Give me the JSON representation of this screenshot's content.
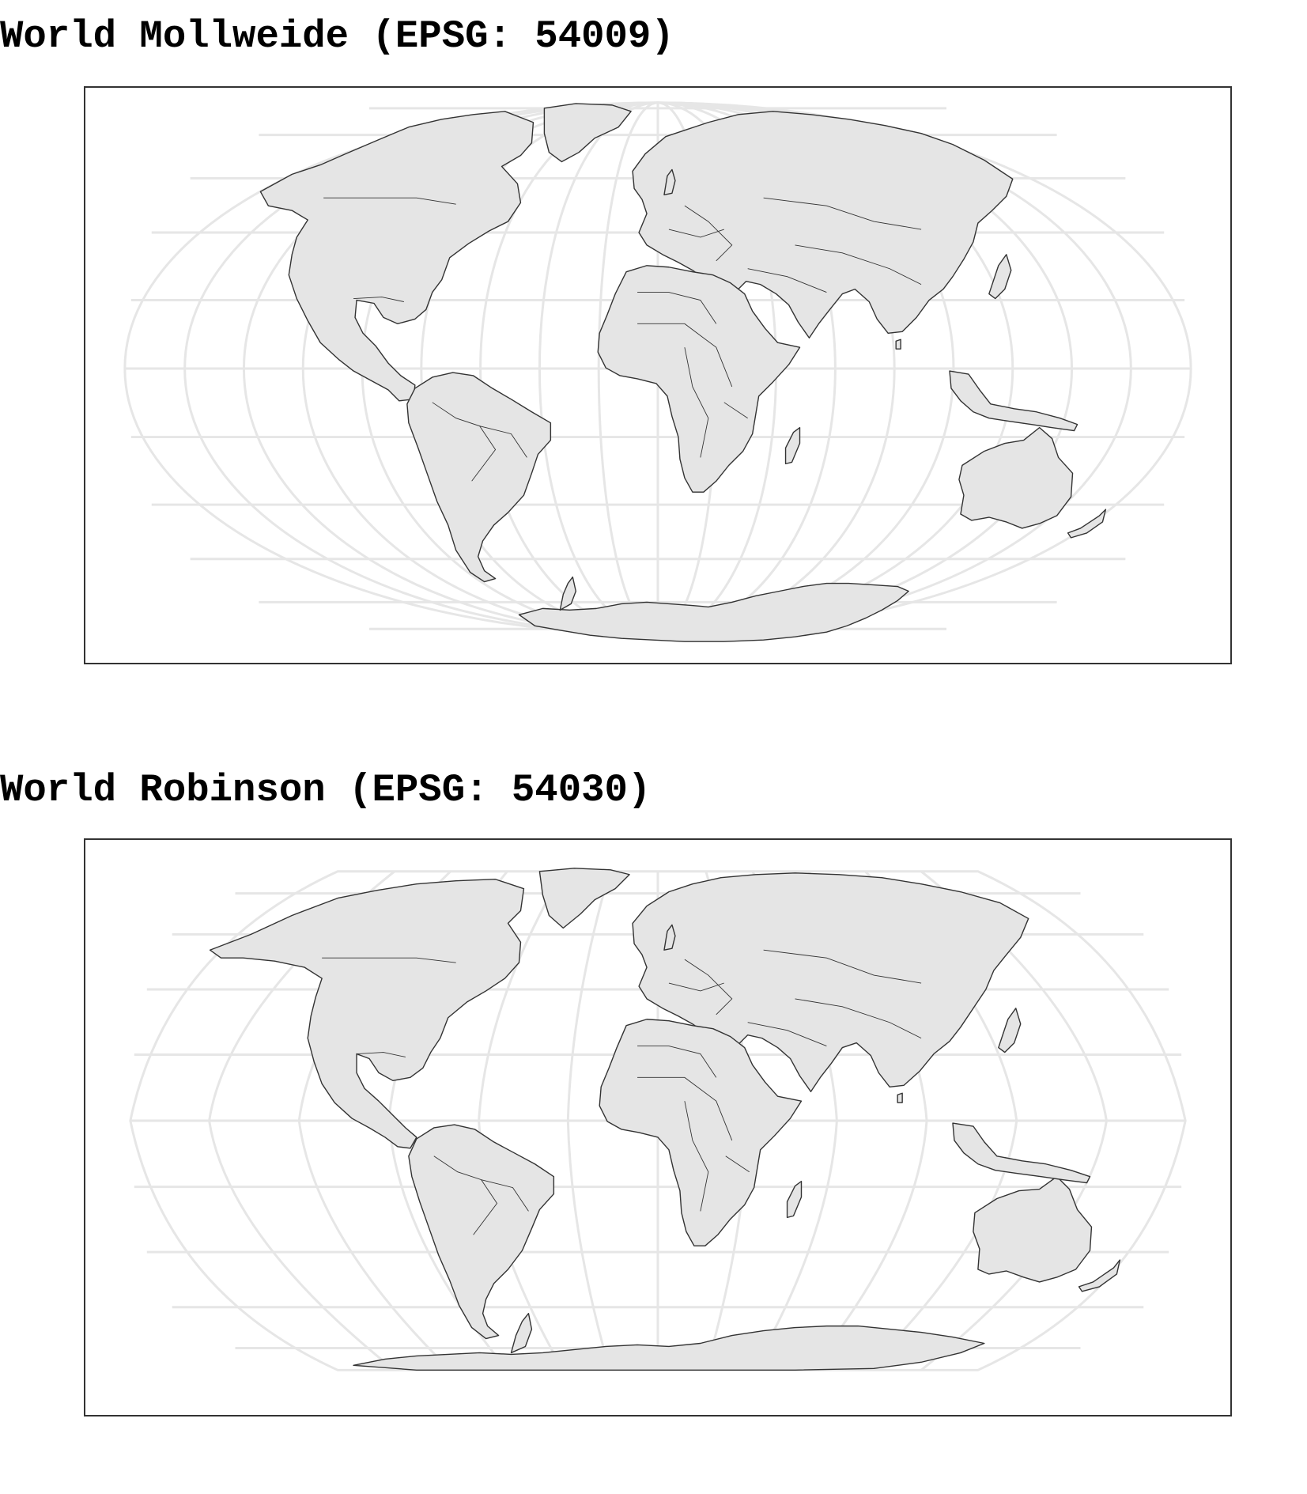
{
  "maps": [
    {
      "title": "World Mollweide (EPSG: 54009)",
      "projection": "Mollweide"
    },
    {
      "title": "World Robinson (EPSG: 54030)",
      "projection": "Robinson"
    }
  ],
  "style": {
    "land_fill": "#e5e5e5",
    "coastline_color": "#333333",
    "graticule_color": "#e6e6e6",
    "panel_border_color": "#333333",
    "background": "#ffffff"
  }
}
